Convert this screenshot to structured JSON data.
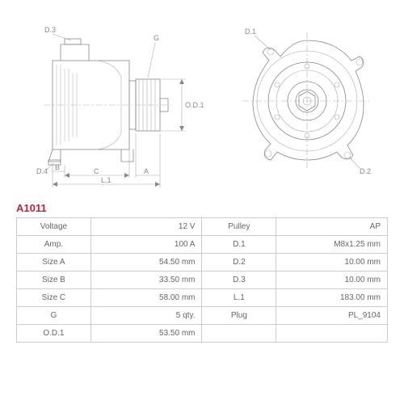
{
  "product_code": "A1011",
  "diagram": {
    "type": "engineering-drawing",
    "line_color": "#888888",
    "thin_line_color": "#aaaaaa",
    "label_color": "#888888",
    "label_fontsize": 9,
    "side_view": {
      "labels": {
        "d3": "D.3",
        "d4": "D.4",
        "g": "G",
        "od1": "O.D.1",
        "b": "B",
        "c": "C",
        "a": "A",
        "l1": "L.1"
      }
    },
    "front_view": {
      "labels": {
        "d1": "D.1",
        "d2": "D.2"
      }
    }
  },
  "table": {
    "border_color": "#cccccc",
    "text_color": "#666666",
    "fontsize": 10,
    "product_code_color": "#c41e3a",
    "rows": [
      {
        "l1": "Voltage",
        "v1": "12 V",
        "l2": "Pulley",
        "v2": "AP"
      },
      {
        "l1": "Amp.",
        "v1": "100 A",
        "l2": "D.1",
        "v2": "M8x1.25 mm"
      },
      {
        "l1": "Size A",
        "v1": "54.50 mm",
        "l2": "D.2",
        "v2": "10.00 mm"
      },
      {
        "l1": "Size B",
        "v1": "33.50 mm",
        "l2": "D.3",
        "v2": "10.00 mm"
      },
      {
        "l1": "Size C",
        "v1": "58.00 mm",
        "l2": "L.1",
        "v2": "183.00 mm"
      },
      {
        "l1": "G",
        "v1": "5 qty.",
        "l2": "Plug",
        "v2": "PL_9104"
      },
      {
        "l1": "O.D.1",
        "v1": "53.50 mm",
        "l2": "",
        "v2": ""
      }
    ]
  }
}
